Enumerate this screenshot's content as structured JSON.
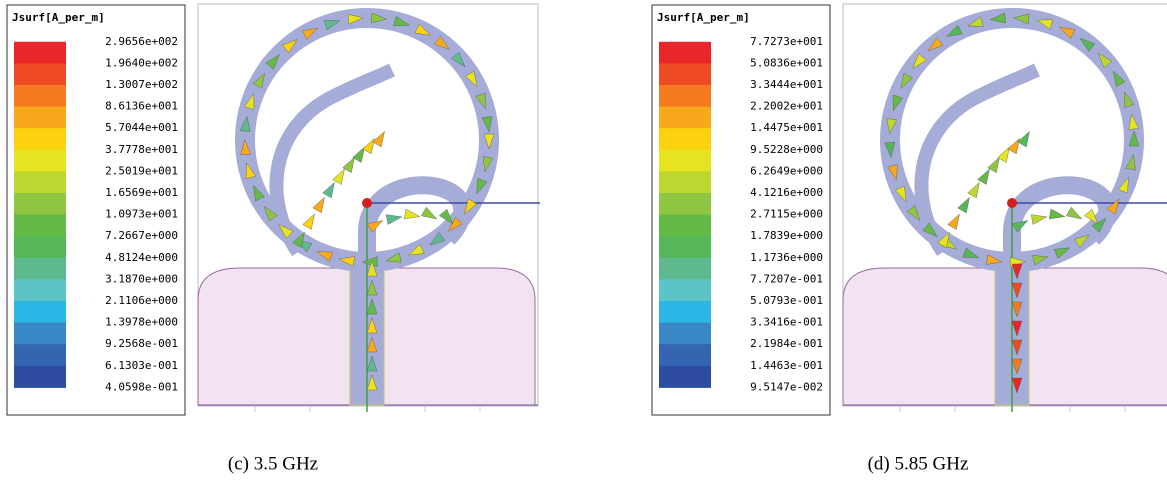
{
  "panels": [
    {
      "legend_title": "Jsurf[A_per_m]",
      "legend_labels": [
        "2.9656e+002",
        "1.9640e+002",
        "1.3007e+002",
        "8.6136e+001",
        "5.7044e+001",
        "3.7778e+001",
        "2.5019e+001",
        "1.6569e+001",
        "1.0973e+001",
        "7.2667e+000",
        "4.8124e+000",
        "3.1870e+000",
        "2.1106e+000",
        "1.3978e+000",
        "9.2568e-001",
        "6.1303e-001",
        "4.0598e-001"
      ],
      "caption": "(c) 3.5 GHz"
    },
    {
      "legend_title": "Jsurf[A_per_m]",
      "legend_labels": [
        "7.7273e+001",
        "5.0836e+001",
        "3.3444e+001",
        "2.2002e+001",
        "1.4475e+001",
        "9.5228e+000",
        "6.2649e+000",
        "4.1216e+000",
        "2.7115e+000",
        "1.7839e+000",
        "1.1736e+000",
        "7.7207e-001",
        "5.0793e-001",
        "3.3416e-001",
        "2.1984e-001",
        "1.4463e-001",
        "9.5147e-002"
      ],
      "caption": "(d) 5.85 GHz"
    }
  ]
}
